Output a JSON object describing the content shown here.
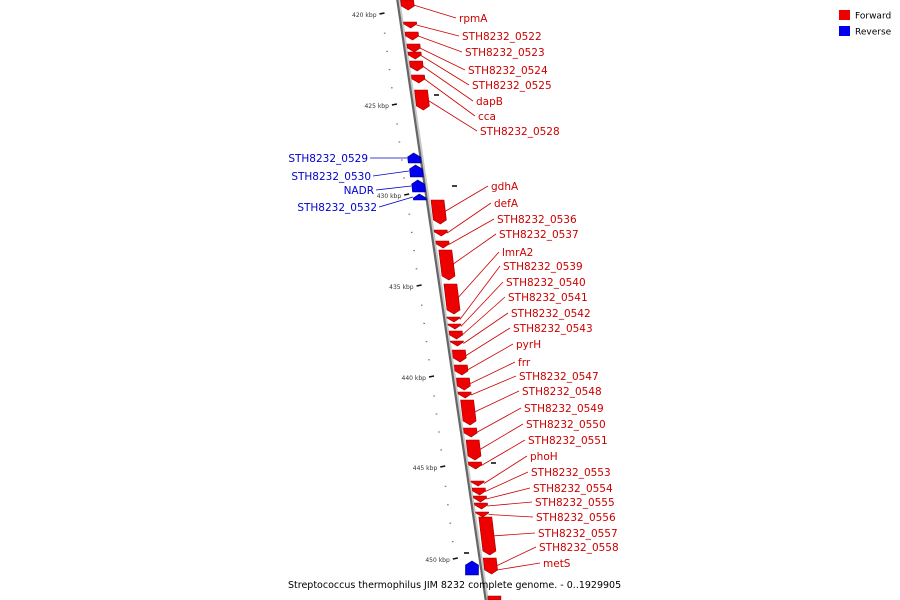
{
  "legend": {
    "forward": {
      "label": "Forward",
      "color": "#ee0000"
    },
    "reverse": {
      "label": "Reverse",
      "color": "#0000ee"
    }
  },
  "caption": "Streptococcus thermophilus JIM 8232 complete genome. - 0..1929905",
  "axis": {
    "unit": "kbp",
    "ticks": [
      "420 kbp",
      "425 kbp",
      "430 kbp",
      "435 kbp",
      "440 kbp",
      "445 kbp",
      "450 kbp"
    ]
  },
  "genes": [
    {
      "name": "rpmA",
      "strand": "forward"
    },
    {
      "name": "STH8232_0522",
      "strand": "forward"
    },
    {
      "name": "STH8232_0523",
      "strand": "forward"
    },
    {
      "name": "STH8232_0524",
      "strand": "forward"
    },
    {
      "name": "STH8232_0525",
      "strand": "forward"
    },
    {
      "name": "dapB",
      "strand": "forward"
    },
    {
      "name": "cca",
      "strand": "forward"
    },
    {
      "name": "STH8232_0528",
      "strand": "forward"
    },
    {
      "name": "STH8232_0529",
      "strand": "reverse"
    },
    {
      "name": "STH8232_0530",
      "strand": "reverse"
    },
    {
      "name": "NADR",
      "strand": "reverse"
    },
    {
      "name": "STH8232_0532",
      "strand": "reverse"
    },
    {
      "name": "gdhA",
      "strand": "forward"
    },
    {
      "name": "defA",
      "strand": "forward"
    },
    {
      "name": "STH8232_0536",
      "strand": "forward"
    },
    {
      "name": "STH8232_0537",
      "strand": "forward"
    },
    {
      "name": "lmrA2",
      "strand": "forward"
    },
    {
      "name": "STH8232_0539",
      "strand": "forward"
    },
    {
      "name": "STH8232_0540",
      "strand": "forward"
    },
    {
      "name": "STH8232_0541",
      "strand": "forward"
    },
    {
      "name": "STH8232_0542",
      "strand": "forward"
    },
    {
      "name": "STH8232_0543",
      "strand": "forward"
    },
    {
      "name": "pyrH",
      "strand": "forward"
    },
    {
      "name": "frr",
      "strand": "forward"
    },
    {
      "name": "STH8232_0547",
      "strand": "forward"
    },
    {
      "name": "STH8232_0548",
      "strand": "forward"
    },
    {
      "name": "STH8232_0549",
      "strand": "forward"
    },
    {
      "name": "STH8232_0550",
      "strand": "forward"
    },
    {
      "name": "STH8232_0551",
      "strand": "forward"
    },
    {
      "name": "phoH",
      "strand": "forward"
    },
    {
      "name": "STH8232_0553",
      "strand": "forward"
    },
    {
      "name": "STH8232_0554",
      "strand": "forward"
    },
    {
      "name": "STH8232_0555",
      "strand": "forward"
    },
    {
      "name": "STH8232_0556",
      "strand": "forward"
    },
    {
      "name": "STH8232_0557",
      "strand": "forward"
    },
    {
      "name": "STH8232_0558",
      "strand": "forward"
    },
    {
      "name": "metS",
      "strand": "forward"
    }
  ]
}
